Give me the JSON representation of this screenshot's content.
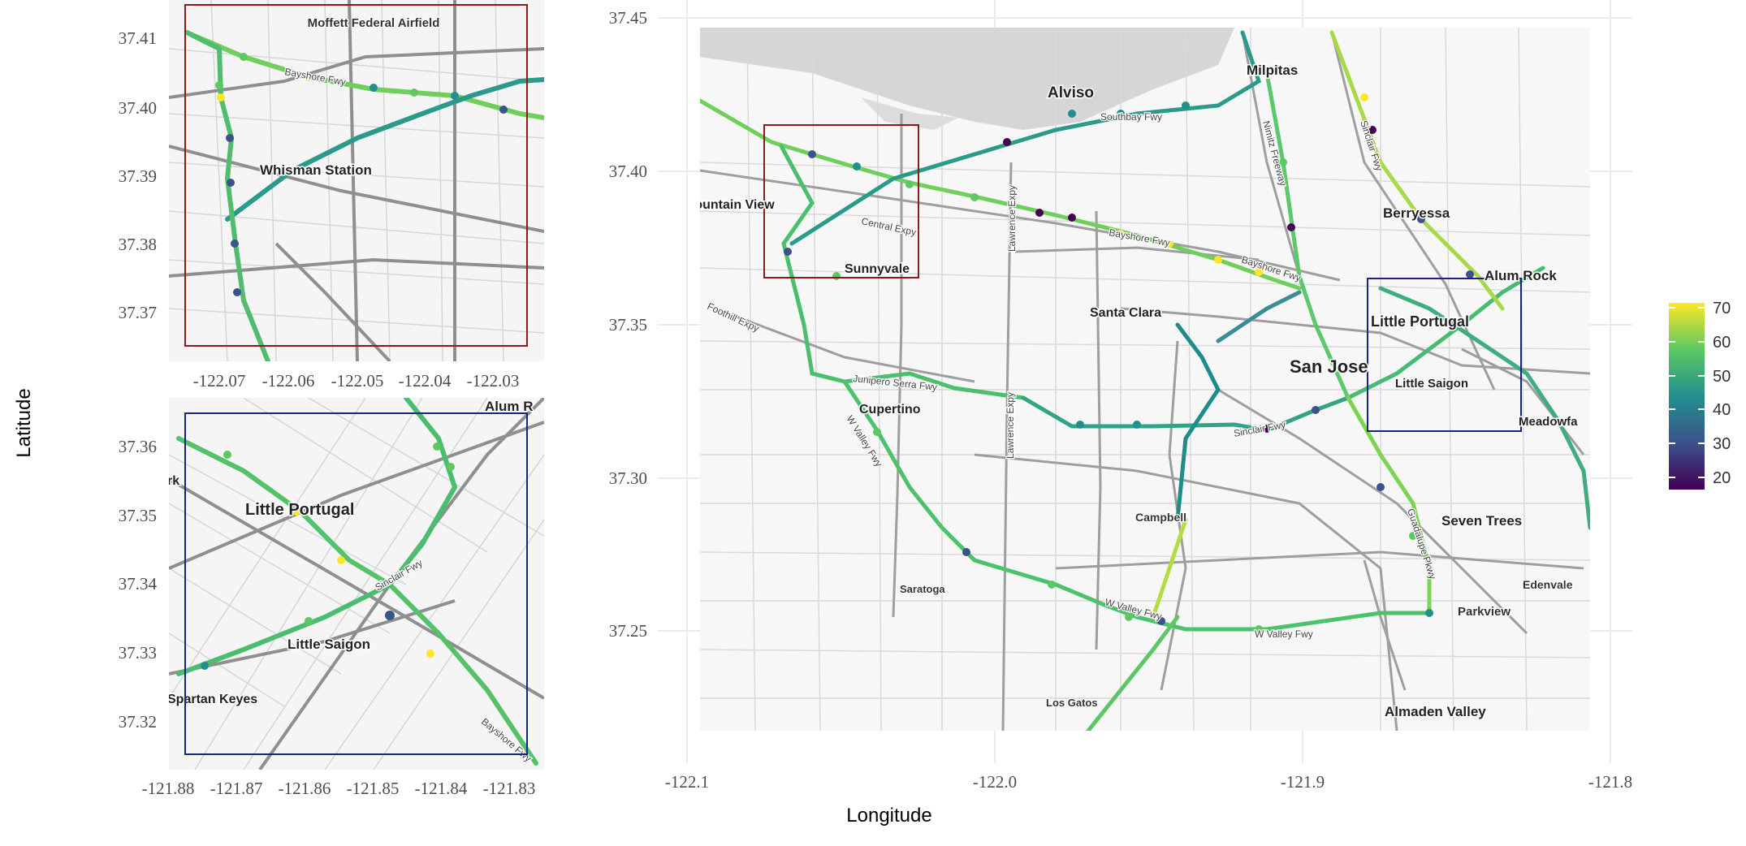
{
  "axes": {
    "x_title": "Longitude",
    "y_title": "Latitude"
  },
  "main_map": {
    "x_ticks": [
      "-122.1",
      "-122.0",
      "-121.9",
      "-121.8"
    ],
    "y_ticks": [
      "37.45",
      "37.40",
      "37.35",
      "37.30",
      "37.25"
    ],
    "places": [
      "Alviso",
      "Milpitas",
      "Berryessa",
      "Alum Rock",
      "Mountain View",
      "Sunnyvale",
      "Santa Clara",
      "San Jose",
      "Little Portugal",
      "Little Saigon",
      "Cupertino",
      "Meadowfa",
      "Campbell",
      "Seven Trees",
      "Edenvale",
      "Parkview",
      "Saratoga",
      "Los Gatos",
      "Almaden Valley"
    ],
    "roads": [
      "Southbay Fwy",
      "Bayshore Fwy",
      "Central Expy",
      "Lawrence Expy",
      "Foothill Expy",
      "Junipero Serra Fwy",
      "W Valley Fwy",
      "Sinclair Fwy",
      "Guadalupe Pkwy",
      "Nimitz Freeway",
      "Sinclair Fwy",
      "Bayshore Fwy",
      "W Valley Fwy",
      "W Valley Fwy",
      "Lawrence Expy"
    ]
  },
  "inset_top": {
    "x_ticks": [
      "-122.07",
      "-122.06",
      "-122.05",
      "-122.04",
      "-122.03"
    ],
    "y_ticks": [
      "37.41",
      "37.40",
      "37.39",
      "37.38",
      "37.37"
    ],
    "places": [
      "Moffett Federal Airfield",
      "Whisman Station"
    ],
    "roads": [
      "Bayshore Fwy"
    ],
    "box_color": "#8b1a1a"
  },
  "inset_bottom": {
    "x_ticks": [
      "-121.88",
      "-121.87",
      "-121.86",
      "-121.85",
      "-121.84",
      "-121.83"
    ],
    "y_ticks": [
      "37.36",
      "37.35",
      "37.34",
      "37.33",
      "37.32"
    ],
    "places": [
      "Little Portugal",
      "Little Saigon",
      "Spartan Keyes",
      "rk",
      "Alum R"
    ],
    "roads": [
      "Bayshore Fwy",
      "Sinclair Fwy"
    ],
    "box_color": "#1a237e"
  },
  "legend": {
    "ticks": [
      "70",
      "60",
      "50",
      "40",
      "30",
      "20"
    ],
    "colors": [
      "#440154",
      "#3b528b",
      "#21908d",
      "#5dc863",
      "#fde725"
    ]
  },
  "chart_data": {
    "type": "scatter",
    "xlabel": "Longitude",
    "ylabel": "Latitude",
    "xlim": [
      -122.1,
      -121.8
    ],
    "ylim": [
      37.22,
      37.45
    ],
    "colorbar_range": [
      17,
      72
    ],
    "insets": [
      {
        "xlim": [
          -122.073,
          -122.027
        ],
        "ylim": [
          37.367,
          37.415
        ]
      },
      {
        "xlim": [
          -121.878,
          -121.83
        ],
        "ylim": [
          37.316,
          37.364
        ]
      }
    ]
  }
}
